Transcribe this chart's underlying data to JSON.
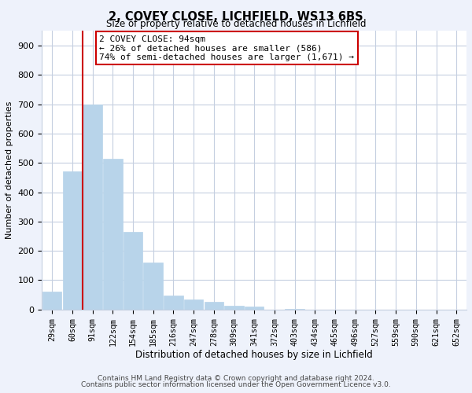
{
  "title": "2, COVEY CLOSE, LICHFIELD, WS13 6BS",
  "subtitle": "Size of property relative to detached houses in Lichfield",
  "xlabel": "Distribution of detached houses by size in Lichfield",
  "ylabel": "Number of detached properties",
  "bar_labels": [
    "29sqm",
    "60sqm",
    "91sqm",
    "122sqm",
    "154sqm",
    "185sqm",
    "216sqm",
    "247sqm",
    "278sqm",
    "309sqm",
    "341sqm",
    "372sqm",
    "403sqm",
    "434sqm",
    "465sqm",
    "496sqm",
    "527sqm",
    "559sqm",
    "590sqm",
    "621sqm",
    "652sqm"
  ],
  "bar_values": [
    60,
    470,
    700,
    515,
    265,
    160,
    48,
    35,
    25,
    13,
    10,
    0,
    3,
    0,
    0,
    0,
    0,
    0,
    0,
    0,
    0
  ],
  "bar_color": "#b8d4ea",
  "marker_label": "2 COVEY CLOSE: 94sqm",
  "annotation_line1": "← 26% of detached houses are smaller (586)",
  "annotation_line2": "74% of semi-detached houses are larger (1,671) →",
  "vline_color": "#cc0000",
  "vline_x_index": 1.5,
  "ylim": [
    0,
    950
  ],
  "yticks": [
    0,
    100,
    200,
    300,
    400,
    500,
    600,
    700,
    800,
    900
  ],
  "footer_line1": "Contains HM Land Registry data © Crown copyright and database right 2024.",
  "footer_line2": "Contains public sector information licensed under the Open Government Licence v3.0.",
  "bg_color": "#eef2fb",
  "plot_bg_color": "#ffffff",
  "grid_color": "#c5cfe0"
}
